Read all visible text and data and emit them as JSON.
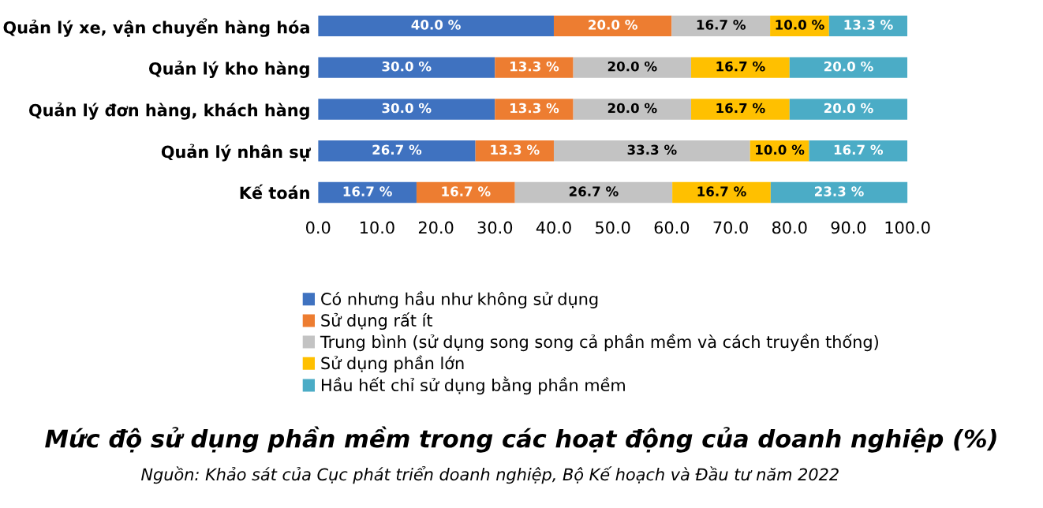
{
  "chart_data": {
    "type": "bar",
    "orientation": "horizontal",
    "stacked": true,
    "title": "Mức độ sử dụng phần mềm trong các hoạt động của doanh nghiệp (%)",
    "annotations": [
      "Nguồn: Khảo sát của Cục phát triển doanh nghiệp, Bộ Kế hoạch và Đầu tư năm 2022"
    ],
    "categories": [
      "Quản lý xe, vận chuyển hàng hóa",
      "Quản lý kho hàng",
      "Quản lý đơn hàng, khách hàng",
      "Quản lý nhân sự",
      "Kế toán"
    ],
    "series": [
      {
        "name": "Có nhưng hầu như không sử dụng",
        "color": "#3f72c0",
        "values": [
          40.0,
          30.0,
          30.0,
          26.7,
          16.7
        ],
        "value_labels": [
          "40.0 %",
          "30.0 %",
          "30.0 %",
          "26.7 %",
          "16.7 %"
        ]
      },
      {
        "name": "Sử dụng rất ít",
        "color": "#ed7d31",
        "values": [
          20.0,
          13.3,
          13.3,
          13.3,
          16.7
        ],
        "value_labels": [
          "20.0 %",
          "13.3 %",
          "13.3 %",
          "13.3 %",
          "16.7 %"
        ]
      },
      {
        "name": "Trung bình (sử dụng song song cả phần mềm và cách truyền thống)",
        "color": "#c3c3c3",
        "values": [
          16.7,
          20.0,
          20.0,
          33.3,
          26.7
        ],
        "value_labels": [
          "16.7 %",
          "20.0 %",
          "20.0 %",
          "33.3 %",
          "26.7 %"
        ]
      },
      {
        "name": "Sử dụng phần lớn",
        "color": "#ffc000",
        "values": [
          10.0,
          16.7,
          16.7,
          10.0,
          16.7
        ],
        "value_labels": [
          "10.0 %",
          "16.7 %",
          "16.7 %",
          "10.0 %",
          "16.7 %"
        ]
      },
      {
        "name": "Hầu hết chỉ sử dụng bằng phần mềm",
        "color": "#4bacc6",
        "values": [
          13.3,
          20.0,
          20.0,
          16.7,
          23.3
        ],
        "value_labels": [
          "13.3 %",
          "20.0 %",
          "20.0 %",
          "16.7 %",
          "23.3 %"
        ]
      }
    ],
    "xlim": [
      0,
      100
    ],
    "xticks": [
      {
        "value": 0,
        "label": "0.0"
      },
      {
        "value": 10,
        "label": "10.0"
      },
      {
        "value": 20,
        "label": "20.0"
      },
      {
        "value": 30,
        "label": "30.0"
      },
      {
        "value": 40,
        "label": "40.0"
      },
      {
        "value": 50,
        "label": "50.0"
      },
      {
        "value": 60,
        "label": "60.0"
      },
      {
        "value": 70,
        "label": "70.0"
      },
      {
        "value": 80,
        "label": "80.0"
      },
      {
        "value": 90,
        "label": "90.0"
      },
      {
        "value": 100,
        "label": "100.0"
      }
    ],
    "legend": "bottom",
    "grid": false
  }
}
